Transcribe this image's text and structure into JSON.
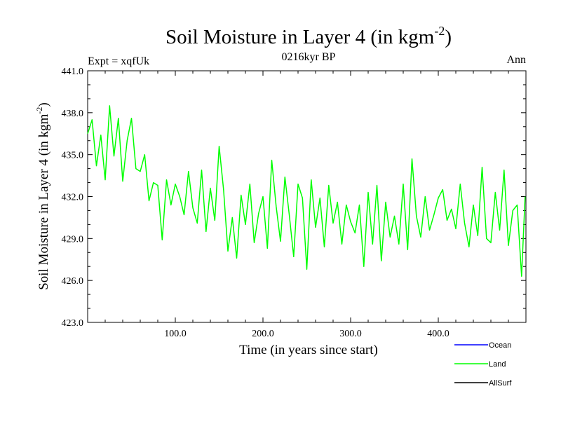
{
  "chart_data": {
    "type": "line",
    "title": "Soil Moisture in Layer 4 (in kgm",
    "title_superscript": "-2",
    "title_suffix": ")",
    "subtitle_left": "Expt = xqfUk",
    "subtitle_center": "0216kyr BP",
    "subtitle_right": "Ann",
    "xlabel": "Time (in years since start)",
    "ylabel": "Soil Moisture in Layer 4 (in kgm",
    "ylabel_superscript": "-2",
    "ylabel_suffix": ")",
    "xlim": [
      0,
      500
    ],
    "ylim": [
      423,
      441
    ],
    "xticks": [
      100,
      200,
      300,
      400
    ],
    "xtick_labels": [
      "100.0",
      "200.0",
      "300.0",
      "400.0"
    ],
    "yticks": [
      423,
      426,
      429,
      432,
      435,
      438,
      441
    ],
    "ytick_labels": [
      "423.0",
      "426.0",
      "429.0",
      "432.0",
      "435.0",
      "438.0",
      "441.0"
    ],
    "legend": [
      {
        "name": "Ocean",
        "color": "#0000ff"
      },
      {
        "name": "Land",
        "color": "#00ff00"
      },
      {
        "name": "AllSurf",
        "color": "#000000"
      }
    ],
    "series": [
      {
        "name": "Land",
        "color": "#00ff00",
        "x": [
          0,
          5,
          10,
          15,
          20,
          25,
          30,
          35,
          40,
          45,
          50,
          55,
          60,
          65,
          70,
          75,
          80,
          85,
          90,
          95,
          100,
          105,
          110,
          115,
          120,
          125,
          130,
          135,
          140,
          145,
          150,
          155,
          160,
          165,
          170,
          175,
          180,
          185,
          190,
          195,
          200,
          205,
          210,
          215,
          220,
          225,
          230,
          235,
          240,
          245,
          250,
          255,
          260,
          265,
          270,
          275,
          280,
          285,
          290,
          295,
          300,
          305,
          310,
          315,
          320,
          325,
          330,
          335,
          340,
          345,
          350,
          355,
          360,
          365,
          370,
          375,
          380,
          385,
          390,
          395,
          400,
          405,
          410,
          415,
          420,
          425,
          430,
          435,
          440,
          445,
          450,
          455,
          460,
          465,
          470,
          475,
          480,
          485,
          490,
          495,
          499
        ],
        "values": [
          436.5,
          437.5,
          434.2,
          436.4,
          433.2,
          438.5,
          434.9,
          437.6,
          433.1,
          436.0,
          437.6,
          434.0,
          433.8,
          435.0,
          431.7,
          433.0,
          432.8,
          428.9,
          433.2,
          431.4,
          432.9,
          432.0,
          430.7,
          433.8,
          431.2,
          430.1,
          433.9,
          429.5,
          432.6,
          430.3,
          435.6,
          432.5,
          428.1,
          430.5,
          427.6,
          432.1,
          430.0,
          432.9,
          428.7,
          430.8,
          432.0,
          428.3,
          434.6,
          431.3,
          428.8,
          433.4,
          430.7,
          427.7,
          432.9,
          431.9,
          426.8,
          433.2,
          429.8,
          431.9,
          428.4,
          432.8,
          430.1,
          431.6,
          428.6,
          431.4,
          430.2,
          429.4,
          431.4,
          427.0,
          432.3,
          428.6,
          432.8,
          427.4,
          431.6,
          429.1,
          430.6,
          428.6,
          432.9,
          428.2,
          434.7,
          430.6,
          429.1,
          432.0,
          429.6,
          430.7,
          431.9,
          432.5,
          430.3,
          431.1,
          429.7,
          432.9,
          430.1,
          428.4,
          431.4,
          429.2,
          434.1,
          429.0,
          428.7,
          432.3,
          429.6,
          433.9,
          428.5,
          431.0,
          431.4,
          426.3,
          432.0
        ]
      }
    ]
  }
}
